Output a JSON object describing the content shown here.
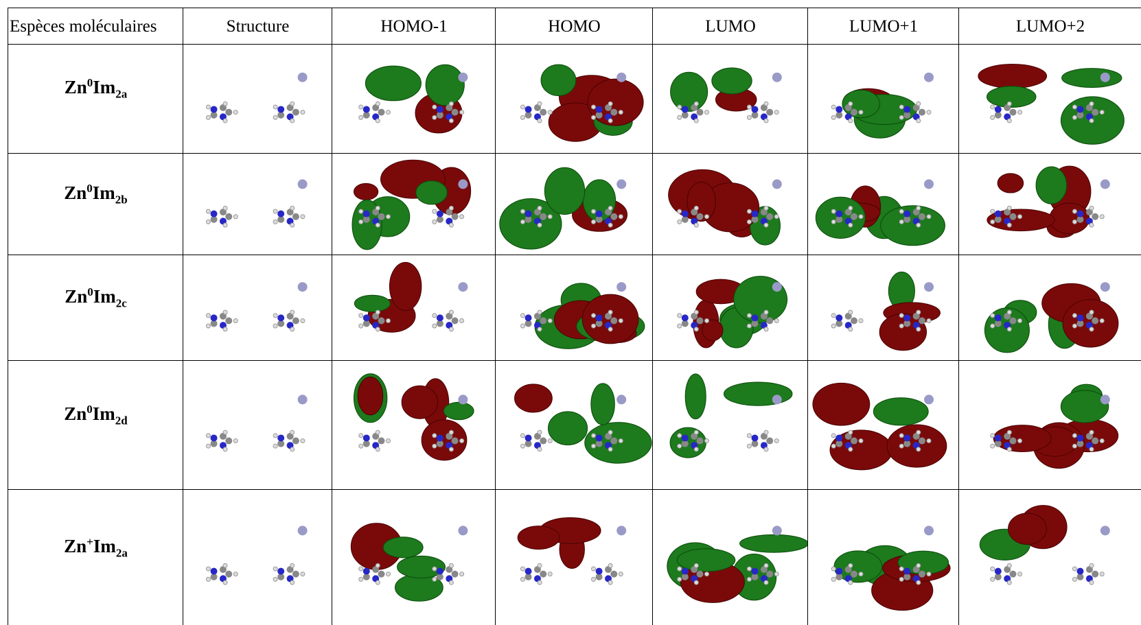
{
  "table": {
    "header": [
      "Espèces moléculaires",
      "Structure",
      "HOMO-1",
      "HOMO",
      "LUMO",
      "LUMO+1",
      "LUMO+2"
    ],
    "rows": [
      {
        "element": "Zn",
        "charge": "0",
        "ligand": "Im",
        "sub": "2a"
      },
      {
        "element": "Zn",
        "charge": "0",
        "ligand": "Im",
        "sub": "2b"
      },
      {
        "element": "Zn",
        "charge": "0",
        "ligand": "Im",
        "sub": "2c"
      },
      {
        "element": "Zn",
        "charge": "0",
        "ligand": "Im",
        "sub": "2d"
      },
      {
        "element": "Zn",
        "charge": "+",
        "ligand": "Im",
        "sub": "2a"
      }
    ]
  }
}
